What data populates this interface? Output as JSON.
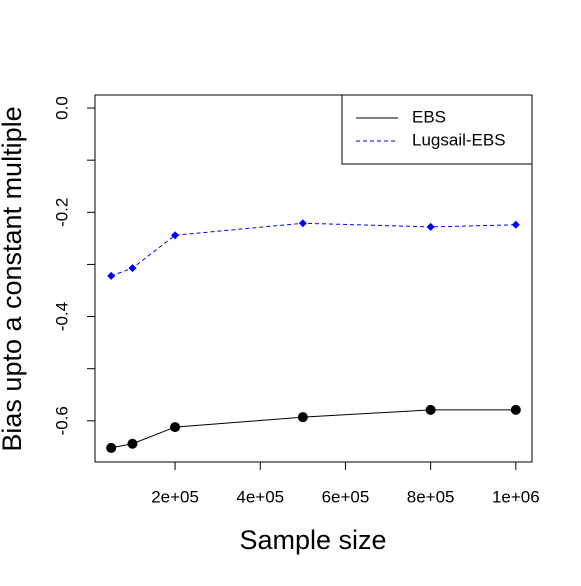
{
  "chart_data": {
    "type": "line",
    "x_label": "Sample size",
    "y_label": "Bias upto a constant multiple",
    "x": [
      50000,
      100000,
      200000,
      500000,
      800000,
      1000000
    ],
    "series": [
      {
        "name": "EBS",
        "color": "#000000",
        "dash": "solid",
        "marker": "circle",
        "values": [
          -0.652,
          -0.644,
          -0.612,
          -0.593,
          -0.579,
          -0.579
        ]
      },
      {
        "name": "Lugsail-EBS",
        "color": "#0000ff",
        "dash": "dashed",
        "marker": "diamond",
        "values": [
          -0.322,
          -0.307,
          -0.244,
          -0.221,
          -0.228,
          -0.224
        ]
      }
    ],
    "xlim": [
      12000,
      1038000
    ],
    "xticks": [
      {
        "value": 200000,
        "label": "2e+05"
      },
      {
        "value": 400000,
        "label": "4e+05"
      },
      {
        "value": 600000,
        "label": "6e+05"
      },
      {
        "value": 800000,
        "label": "8e+05"
      },
      {
        "value": 1000000,
        "label": "1e+06"
      }
    ],
    "ylim": [
      -0.679,
      0.025
    ],
    "yticks": [
      {
        "value": 0,
        "label": "0.0"
      },
      {
        "value": -0.1,
        "label": null
      },
      {
        "value": -0.2,
        "label": "-0.2"
      },
      {
        "value": -0.3,
        "label": null
      },
      {
        "value": -0.4,
        "label": "-0.4"
      },
      {
        "value": -0.5,
        "label": null
      },
      {
        "value": -0.6,
        "label": "-0.6"
      }
    ],
    "legend": "top-right"
  }
}
